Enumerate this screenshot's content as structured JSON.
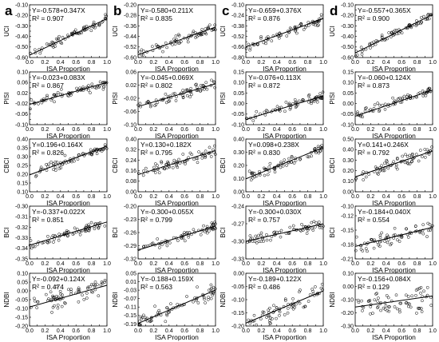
{
  "chart_data": {
    "type": "scatter",
    "columns": [
      "a",
      "b",
      "c",
      "d"
    ],
    "x_label": "ISA Proportion",
    "x_ticks": [
      "0.0",
      "0.1",
      "0.2",
      "0.3",
      "0.4",
      "0.5",
      "0.6",
      "0.7",
      "0.8",
      "0.9",
      "1.0"
    ],
    "xlim": [
      0,
      1
    ],
    "grid": false,
    "rows": [
      {
        "ylabel": "UCI",
        "panels": [
          {
            "col": "a",
            "eq": "Y=-0.578+0.347X",
            "r2": "R² = 0.907",
            "intercept": -0.578,
            "slope": 0.347,
            "ylim": [
              -0.6,
              -0.1
            ],
            "yticks": [
              "-0.10",
              "-0.15",
              "-0.20",
              "-0.25",
              "-0.30",
              "-0.35",
              "-0.40",
              "-0.45",
              "-0.50",
              "-0.55",
              "-0.60"
            ]
          },
          {
            "col": "b",
            "eq": "Y=-0.580+0.211X",
            "r2": "R² =  0.835",
            "intercept": -0.58,
            "slope": 0.211,
            "ylim": [
              -0.6,
              -0.2
            ],
            "yticks": [
              "-0.20",
              "-0.28",
              "-0.36",
              "-0.44",
              "-0.52",
              "-0.60"
            ]
          },
          {
            "col": "c",
            "eq": "Y=-0.659+0.376X",
            "r2": "R² =  0.876",
            "intercept": -0.659,
            "slope": 0.376,
            "ylim": [
              -0.8,
              -0.1
            ],
            "yticks": [
              "-0.10",
              "-0.17",
              "-0.24",
              "-0.31",
              "-0.38",
              "-0.45",
              "-0.52",
              "-0.59",
              "-0.66",
              "-0.73",
              "-0.80"
            ]
          },
          {
            "col": "d",
            "eq": "Y=-0.557+0.365X",
            "r2": "R² =  0.900",
            "intercept": -0.557,
            "slope": 0.365,
            "ylim": [
              -0.6,
              -0.1
            ],
            "yticks": [
              "-0.10",
              "-0.15",
              "-0.20",
              "-0.25",
              "-0.30",
              "-0.35",
              "-0.40",
              "-0.45",
              "-0.50",
              "-0.55",
              "-0.60"
            ]
          }
        ]
      },
      {
        "ylabel": "PISI",
        "panels": [
          {
            "col": "a",
            "eq": "Y=-0.023+0.083X",
            "r2": "R² =  0.867",
            "intercept": -0.023,
            "slope": 0.083,
            "ylim": [
              -0.1,
              0.1
            ],
            "yticks": [
              "0.10",
              "0.08",
              "0.06",
              "0.04",
              "0.02",
              "0.00",
              "-0.02",
              "-0.04",
              "-0.06",
              "-0.08",
              "-0.10"
            ]
          },
          {
            "col": "b",
            "eq": "Y=-0.045+0.069X",
            "r2": "R² =  0.802",
            "intercept": -0.045,
            "slope": 0.069,
            "ylim": [
              -0.1,
              0.06
            ],
            "yticks": [
              "0.06",
              "0.02",
              "-0.02",
              "-0.06",
              "-0.10"
            ]
          },
          {
            "col": "c",
            "eq": "Y=-0.076+0.113X",
            "r2": "R² =  0.872",
            "intercept": -0.076,
            "slope": 0.113,
            "ylim": [
              -0.1,
              0.15
            ],
            "yticks": [
              "0.15",
              "0.10",
              "0.05",
              "0.00",
              "-0.05",
              "-0.10"
            ]
          },
          {
            "col": "d",
            "eq": "Y=-0.060+0.124X",
            "r2": "R² =  0.873",
            "intercept": -0.06,
            "slope": 0.124,
            "ylim": [
              -0.1,
              0.15
            ],
            "yticks": [
              "0.15",
              "0.10",
              "0.05",
              "0.00",
              "-0.05",
              "-0.10"
            ]
          }
        ]
      },
      {
        "ylabel": "CBCI",
        "panels": [
          {
            "col": "a",
            "eq": "Y=0.196+0.164X",
            "r2": "R² =  0.826",
            "intercept": 0.196,
            "slope": 0.164,
            "ylim": [
              0.1,
              0.4
            ],
            "yticks": [
              "0.40",
              "0.35",
              "0.30",
              "0.25",
              "0.20",
              "0.15",
              "0.10"
            ]
          },
          {
            "col": "b",
            "eq": "Y=0.130+0.182X",
            "r2": "R² =  0.795",
            "intercept": 0.13,
            "slope": 0.182,
            "ylim": [
              0.0,
              0.4
            ],
            "yticks": [
              "0.40",
              "0.32",
              "0.24",
              "0.16",
              "0.08",
              "0.00"
            ]
          },
          {
            "col": "c",
            "eq": "Y=0.098+0.238X",
            "r2": "R² =  0.830",
            "intercept": 0.098,
            "slope": 0.238,
            "ylim": [
              0.0,
              0.4
            ],
            "yticks": [
              "0.40",
              "0.30",
              "0.20",
              "0.10",
              "0.00"
            ]
          },
          {
            "col": "d",
            "eq": "Y=0.141+0.246X",
            "r2": "R² =  0.792",
            "intercept": 0.141,
            "slope": 0.246,
            "ylim": [
              0.0,
              0.5
            ],
            "yticks": [
              "0.50",
              "0.40",
              "0.30",
              "0.20",
              "0.10",
              "0.00"
            ]
          }
        ]
      },
      {
        "ylabel": "BCI",
        "panels": [
          {
            "col": "a",
            "eq": "Y=-0.337+0.022X",
            "r2": "R² =  0.851",
            "intercept": -0.337,
            "slope": 0.022,
            "ylim": [
              -0.35,
              -0.3
            ],
            "yticks": [
              "-0.30",
              "-0.31",
              "-0.32",
              "-0.33",
              "-0.34",
              "-0.35"
            ]
          },
          {
            "col": "b",
            "eq": "Y=-0.300+0.055X",
            "r2": "R² =  0.799",
            "intercept": -0.3,
            "slope": 0.055,
            "ylim": [
              -0.32,
              -0.2
            ],
            "yticks": [
              "-0.20",
              "-0.23",
              "-0.26",
              "-0.29",
              "-0.32"
            ]
          },
          {
            "col": "c",
            "eq": "Y=-0.300+0.030X",
            "r2": "R² =  0.757",
            "intercept": -0.3,
            "slope": 0.03,
            "ylim": [
              -0.33,
              -0.24
            ],
            "yticks": [
              "-0.24",
              "-0.27",
              "-0.30",
              "-0.33"
            ]
          },
          {
            "col": "d",
            "eq": "Y=-0.184+0.040X",
            "r2": "R² =  0.554",
            "intercept": -0.184,
            "slope": 0.04,
            "ylim": [
              -0.21,
              -0.1
            ],
            "yticks": [
              "-0.10",
              "-0.12",
              "-0.15",
              "-0.18",
              "-0.21"
            ]
          }
        ]
      },
      {
        "ylabel": "NDBI",
        "panels": [
          {
            "col": "a",
            "eq": "Y=-0.092+0.124X",
            "r2": "R² =  0.474",
            "intercept": -0.092,
            "slope": 0.124,
            "ylim": [
              -0.2,
              0.1
            ],
            "yticks": [
              "0.10",
              "0.05",
              "0.00",
              "-0.05",
              "-0.10",
              "-0.15",
              "-0.20"
            ]
          },
          {
            "col": "b",
            "eq": "Y=-0.188+0.159X",
            "r2": "R² =  0.563",
            "intercept": -0.188,
            "slope": 0.159,
            "ylim": [
              -0.2,
              0.05
            ],
            "yticks": [
              "0.05",
              "0.01",
              "-0.03",
              "-0.07",
              "-0.11",
              "-0.15",
              "-0.19"
            ]
          },
          {
            "col": "c",
            "eq": "Y=-0.189+0.122X",
            "r2": "R² =  0.486",
            "intercept": -0.189,
            "slope": 0.122,
            "ylim": [
              -0.2,
              0.0
            ],
            "yticks": [
              "0.00",
              "-0.05",
              "-0.10",
              "-0.15",
              "-0.20"
            ]
          },
          {
            "col": "d",
            "eq": "Y=-0.156+0.084X",
            "r2": "R² =  0.129",
            "intercept": -0.156,
            "slope": 0.084,
            "ylim": [
              -0.3,
              0.1
            ],
            "yticks": [
              "0.10",
              "0.00",
              "-0.10",
              "-0.20",
              "-0.30"
            ]
          }
        ]
      }
    ]
  }
}
